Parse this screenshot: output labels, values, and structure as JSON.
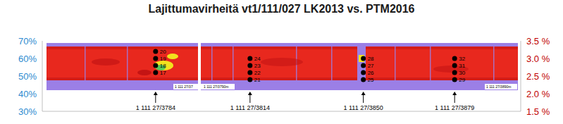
{
  "chart_data": {
    "type": "scatter",
    "title": "Lajittumavirheitä vt1/111/027 LK2013 vs. PTM2016",
    "xlim": [
      3748,
      3900
    ],
    "ylim": [
      30,
      70
    ],
    "yticks": [
      {
        "value": 30,
        "label": "30%"
      },
      {
        "value": 40,
        "label": "40%"
      },
      {
        "value": 50,
        "label": "50%"
      },
      {
        "value": 60,
        "label": "60%"
      },
      {
        "value": 70,
        "label": "70%"
      }
    ],
    "y2lim": [
      1.5,
      3.5
    ],
    "y2ticks": [
      {
        "value": 1.5,
        "label": "1.5 %"
      },
      {
        "value": 2.0,
        "label": "2.0 %"
      },
      {
        "value": 2.5,
        "label": "2.5 %"
      },
      {
        "value": 3.0,
        "label": "3.0 %"
      },
      {
        "value": 3.5,
        "label": "3.5 %"
      }
    ],
    "tick_labels": "y",
    "grid": false,
    "color": "#000000",
    "marker": "circle",
    "points": [
      {
        "x": 3784,
        "y": 52,
        "label": "17"
      },
      {
        "x": 3784,
        "y": 56,
        "label": "18"
      },
      {
        "x": 3784,
        "y": 60,
        "label": "19"
      },
      {
        "x": 3784,
        "y": 64,
        "label": "20"
      },
      {
        "x": 3814,
        "y": 48,
        "label": "21"
      },
      {
        "x": 3814,
        "y": 52,
        "label": "22"
      },
      {
        "x": 3814,
        "y": 56,
        "label": "23"
      },
      {
        "x": 3814,
        "y": 60,
        "label": "24"
      },
      {
        "x": 3850,
        "y": 48,
        "label": "25"
      },
      {
        "x": 3850,
        "y": 52,
        "label": "26"
      },
      {
        "x": 3850,
        "y": 56,
        "label": "27"
      },
      {
        "x": 3850,
        "y": 60,
        "label": "28"
      },
      {
        "x": 3879,
        "y": 48,
        "label": "29"
      },
      {
        "x": 3879,
        "y": 52,
        "label": "30"
      },
      {
        "x": 3879,
        "y": 56,
        "label": "31"
      },
      {
        "x": 3879,
        "y": 60,
        "label": "32"
      }
    ],
    "annotations": [
      {
        "x": 3784,
        "text": "1 111 27/3784"
      },
      {
        "x": 3814,
        "text": "1 111 27/3814"
      },
      {
        "x": 3850,
        "text": "1 111 27/3850"
      },
      {
        "x": 3879,
        "text": "1 111 27/3879"
      }
    ],
    "image_captions": [
      "1 111 27/37",
      "1 111 27/3790m",
      "1 111 27/3890m"
    ]
  }
}
